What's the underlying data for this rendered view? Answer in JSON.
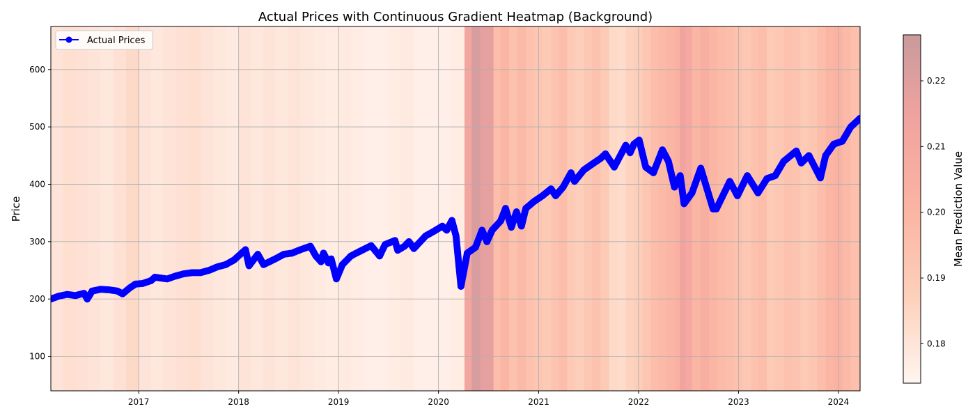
{
  "chart_data": {
    "type": "line",
    "title": "Actual Prices with Continuous Gradient Heatmap (Background)",
    "xlabel": "",
    "ylabel": "Price",
    "xlim": [
      "2016-02-15",
      "2024-03-20"
    ],
    "ylim": [
      40,
      675
    ],
    "x_ticks": [
      "2017",
      "2018",
      "2019",
      "2020",
      "2021",
      "2022",
      "2023",
      "2024"
    ],
    "y_ticks": [
      100,
      200,
      300,
      400,
      500,
      600
    ],
    "grid": true,
    "legend": {
      "position": "top-left",
      "entries": [
        "Actual Prices"
      ]
    },
    "series": [
      {
        "name": "Actual Prices",
        "color": "#0000ff",
        "marker": "circle",
        "points": [
          [
            "2016-02-15",
            200
          ],
          [
            "2016-03-15",
            205
          ],
          [
            "2016-04-15",
            208
          ],
          [
            "2016-05-15",
            206
          ],
          [
            "2016-06-15",
            210
          ],
          [
            "2016-06-27",
            200
          ],
          [
            "2016-07-15",
            214
          ],
          [
            "2016-08-15",
            217
          ],
          [
            "2016-09-15",
            216
          ],
          [
            "2016-10-15",
            214
          ],
          [
            "2016-11-03",
            209
          ],
          [
            "2016-12-01",
            220
          ],
          [
            "2016-12-20",
            226
          ],
          [
            "2017-01-15",
            227
          ],
          [
            "2017-02-15",
            232
          ],
          [
            "2017-03-01",
            238
          ],
          [
            "2017-04-15",
            235
          ],
          [
            "2017-05-15",
            240
          ],
          [
            "2017-06-15",
            244
          ],
          [
            "2017-07-15",
            246
          ],
          [
            "2017-08-15",
            246
          ],
          [
            "2017-09-15",
            250
          ],
          [
            "2017-10-15",
            256
          ],
          [
            "2017-11-15",
            260
          ],
          [
            "2017-12-15",
            268
          ],
          [
            "2018-01-26",
            286
          ],
          [
            "2018-02-08",
            258
          ],
          [
            "2018-03-12",
            278
          ],
          [
            "2018-04-02",
            260
          ],
          [
            "2018-05-15",
            270
          ],
          [
            "2018-06-15",
            278
          ],
          [
            "2018-07-15",
            280
          ],
          [
            "2018-08-15",
            286
          ],
          [
            "2018-09-20",
            292
          ],
          [
            "2018-10-10",
            275
          ],
          [
            "2018-10-29",
            265
          ],
          [
            "2018-11-07",
            280
          ],
          [
            "2018-11-25",
            263
          ],
          [
            "2018-12-05",
            270
          ],
          [
            "2018-12-24",
            235
          ],
          [
            "2019-01-15",
            260
          ],
          [
            "2019-02-15",
            275
          ],
          [
            "2019-03-15",
            282
          ],
          [
            "2019-04-30",
            293
          ],
          [
            "2019-05-31",
            275
          ],
          [
            "2019-06-20",
            295
          ],
          [
            "2019-07-26",
            302
          ],
          [
            "2019-08-05",
            285
          ],
          [
            "2019-08-30",
            292
          ],
          [
            "2019-09-15",
            300
          ],
          [
            "2019-10-03",
            288
          ],
          [
            "2019-11-15",
            310
          ],
          [
            "2019-12-15",
            318
          ],
          [
            "2020-01-15",
            327
          ],
          [
            "2020-01-31",
            320
          ],
          [
            "2020-02-19",
            337
          ],
          [
            "2020-03-05",
            310
          ],
          [
            "2020-03-23",
            222
          ],
          [
            "2020-04-15",
            280
          ],
          [
            "2020-05-15",
            290
          ],
          [
            "2020-06-08",
            320
          ],
          [
            "2020-06-26",
            300
          ],
          [
            "2020-07-15",
            320
          ],
          [
            "2020-08-15",
            336
          ],
          [
            "2020-09-02",
            358
          ],
          [
            "2020-09-23",
            325
          ],
          [
            "2020-10-12",
            352
          ],
          [
            "2020-10-30",
            327
          ],
          [
            "2020-11-15",
            358
          ],
          [
            "2020-12-15",
            370
          ],
          [
            "2021-01-15",
            380
          ],
          [
            "2021-02-15",
            392
          ],
          [
            "2021-03-04",
            380
          ],
          [
            "2021-03-31",
            395
          ],
          [
            "2021-04-29",
            420
          ],
          [
            "2021-05-12",
            405
          ],
          [
            "2021-06-15",
            425
          ],
          [
            "2021-07-15",
            435
          ],
          [
            "2021-08-15",
            445
          ],
          [
            "2021-09-02",
            453
          ],
          [
            "2021-10-04",
            430
          ],
          [
            "2021-11-15",
            468
          ],
          [
            "2021-12-01",
            455
          ],
          [
            "2021-12-15",
            470
          ],
          [
            "2022-01-03",
            477
          ],
          [
            "2022-01-27",
            430
          ],
          [
            "2022-02-24",
            420
          ],
          [
            "2022-03-29",
            460
          ],
          [
            "2022-04-20",
            440
          ],
          [
            "2022-05-12",
            395
          ],
          [
            "2022-06-02",
            415
          ],
          [
            "2022-06-16",
            366
          ],
          [
            "2022-07-15",
            385
          ],
          [
            "2022-08-16",
            428
          ],
          [
            "2022-09-30",
            357
          ],
          [
            "2022-10-12",
            357
          ],
          [
            "2022-11-30",
            405
          ],
          [
            "2022-12-28",
            380
          ],
          [
            "2023-02-02",
            415
          ],
          [
            "2023-03-13",
            385
          ],
          [
            "2023-04-15",
            410
          ],
          [
            "2023-05-15",
            415
          ],
          [
            "2023-06-15",
            440
          ],
          [
            "2023-07-31",
            458
          ],
          [
            "2023-08-18",
            437
          ],
          [
            "2023-09-15",
            450
          ],
          [
            "2023-10-27",
            411
          ],
          [
            "2023-11-15",
            450
          ],
          [
            "2023-12-15",
            470
          ],
          [
            "2024-01-15",
            475
          ],
          [
            "2024-02-15",
            500
          ],
          [
            "2024-03-20",
            515
          ]
        ]
      }
    ],
    "heatmap": {
      "name": "Mean Prediction Value",
      "colormap": "Reds",
      "alpha": 0.4,
      "range": [
        0.174,
        0.227
      ],
      "colorbar_ticks": [
        0.18,
        0.19,
        0.2,
        0.21,
        0.22
      ],
      "colorbar_tick_labels": [
        "0.18",
        "0.19",
        "0.20",
        "0.21",
        "0.22"
      ],
      "segments": [
        [
          "2016-02-15",
          0.18
        ],
        [
          "2016-04-01",
          0.182
        ],
        [
          "2016-05-15",
          0.181
        ],
        [
          "2016-07-01",
          0.18
        ],
        [
          "2016-08-15",
          0.179
        ],
        [
          "2016-10-01",
          0.181
        ],
        [
          "2016-11-15",
          0.184
        ],
        [
          "2017-01-01",
          0.18
        ],
        [
          "2017-02-15",
          0.179
        ],
        [
          "2017-04-01",
          0.18
        ],
        [
          "2017-05-15",
          0.181
        ],
        [
          "2017-07-01",
          0.182
        ],
        [
          "2017-08-15",
          0.18
        ],
        [
          "2017-10-01",
          0.179
        ],
        [
          "2017-11-15",
          0.178
        ],
        [
          "2018-01-01",
          0.18
        ],
        [
          "2018-02-15",
          0.179
        ],
        [
          "2018-04-01",
          0.18
        ],
        [
          "2018-05-15",
          0.179
        ],
        [
          "2018-07-01",
          0.18
        ],
        [
          "2018-08-15",
          0.179
        ],
        [
          "2018-10-01",
          0.178
        ],
        [
          "2018-11-15",
          0.177
        ],
        [
          "2019-01-01",
          0.178
        ],
        [
          "2019-02-15",
          0.177
        ],
        [
          "2019-04-01",
          0.176
        ],
        [
          "2019-05-15",
          0.176
        ],
        [
          "2019-07-01",
          0.177
        ],
        [
          "2019-08-15",
          0.178
        ],
        [
          "2019-10-01",
          0.176
        ],
        [
          "2019-11-15",
          0.176
        ],
        [
          "2020-01-01",
          0.176
        ],
        [
          "2020-02-15",
          0.177
        ],
        [
          "2020-04-05",
          0.212
        ],
        [
          "2020-05-01",
          0.222
        ],
        [
          "2020-06-01",
          0.218
        ],
        [
          "2020-07-20",
          0.196
        ],
        [
          "2020-08-15",
          0.2
        ],
        [
          "2020-09-15",
          0.194
        ],
        [
          "2020-10-15",
          0.198
        ],
        [
          "2020-11-15",
          0.194
        ],
        [
          "2020-12-15",
          0.192
        ],
        [
          "2021-01-15",
          0.19
        ],
        [
          "2021-02-15",
          0.193
        ],
        [
          "2021-03-15",
          0.196
        ],
        [
          "2021-04-15",
          0.19
        ],
        [
          "2021-05-15",
          0.188
        ],
        [
          "2021-06-15",
          0.191
        ],
        [
          "2021-07-15",
          0.194
        ],
        [
          "2021-08-15",
          0.19
        ],
        [
          "2021-09-15",
          0.184
        ],
        [
          "2021-10-15",
          0.183
        ],
        [
          "2021-11-15",
          0.186
        ],
        [
          "2021-12-15",
          0.188
        ],
        [
          "2022-01-15",
          0.192
        ],
        [
          "2022-02-15",
          0.196
        ],
        [
          "2022-03-15",
          0.198
        ],
        [
          "2022-04-15",
          0.2
        ],
        [
          "2022-05-15",
          0.203
        ],
        [
          "2022-06-01",
          0.214
        ],
        [
          "2022-06-20",
          0.21
        ],
        [
          "2022-07-15",
          0.2
        ],
        [
          "2022-08-15",
          0.205
        ],
        [
          "2022-09-15",
          0.2
        ],
        [
          "2022-10-15",
          0.197
        ],
        [
          "2022-11-15",
          0.196
        ],
        [
          "2022-12-15",
          0.194
        ],
        [
          "2023-01-15",
          0.191
        ],
        [
          "2023-02-15",
          0.194
        ],
        [
          "2023-03-15",
          0.196
        ],
        [
          "2023-04-15",
          0.19
        ],
        [
          "2023-05-15",
          0.191
        ],
        [
          "2023-06-15",
          0.194
        ],
        [
          "2023-07-15",
          0.193
        ],
        [
          "2023-08-15",
          0.19
        ],
        [
          "2023-09-15",
          0.192
        ],
        [
          "2023-10-15",
          0.196
        ],
        [
          "2023-11-15",
          0.2
        ],
        [
          "2023-12-15",
          0.202
        ],
        [
          "2024-01-15",
          0.198
        ],
        [
          "2024-02-15",
          0.195
        ]
      ]
    }
  }
}
